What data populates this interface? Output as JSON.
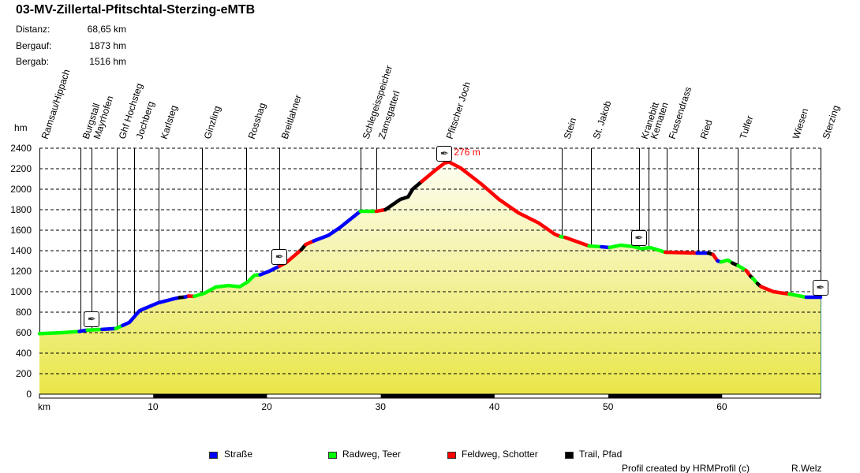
{
  "title": "03-MV-Zillertal-Pfitschtal-Sterzing-eMTB",
  "stats": [
    {
      "label": "Distanz:",
      "value": "68,65 km"
    },
    {
      "label": "Bergauf:",
      "value": "1873 hm"
    },
    {
      "label": "Bergab:",
      "value": "1516 hm"
    }
  ],
  "footer": {
    "credit": "Profil created by HRMProfil (c)",
    "author": "R.Welz"
  },
  "chart_data": {
    "type": "area",
    "ylabel": "hm",
    "xlabel": "km",
    "xlim": [
      0,
      68.65
    ],
    "ylim": [
      0,
      2400
    ],
    "yticks": [
      "0",
      "200",
      "400",
      "600",
      "800",
      "1000",
      "1200",
      "1400",
      "1600",
      "1800",
      "2000",
      "2200",
      "2400"
    ],
    "xticks": [
      "10",
      "20",
      "30",
      "40",
      "50",
      "60"
    ],
    "grid": true,
    "peak_label": "276 m",
    "colors": {
      "strasse": "#0000ff",
      "radweg": "#00ff00",
      "feldweg": "#ff0000",
      "trail": "#000000",
      "fill_top": "#fdfdf0",
      "fill_bottom": "#e9e649"
    },
    "legend": [
      {
        "key": "strasse",
        "label": "Straße"
      },
      {
        "key": "radweg",
        "label": "Radweg, Teer"
      },
      {
        "key": "feldweg",
        "label": "Feldweg, Schotter"
      },
      {
        "key": "trail",
        "label": "Trail, Pfad"
      }
    ],
    "waypoints": [
      {
        "name": "Ramsau/Hippach",
        "km": 0
      },
      {
        "name": "Burgstall",
        "km": 3.6
      },
      {
        "name": "Mayrhofen",
        "km": 4.6
      },
      {
        "name": "Ghf Hochsteg",
        "km": 6.8
      },
      {
        "name": "Jochberg",
        "km": 8.3
      },
      {
        "name": "Karlsteg",
        "km": 10.5
      },
      {
        "name": "Ginzling",
        "km": 14.3
      },
      {
        "name": "Rosshag",
        "km": 18.2
      },
      {
        "name": "Breitlahner",
        "km": 21.1
      },
      {
        "name": "Schlegeisspeicher",
        "km": 28.2
      },
      {
        "name": "Zamsgatterl",
        "km": 29.6
      },
      {
        "name": "Pfitscher Joch",
        "km": 35.6
      },
      {
        "name": "Stein",
        "km": 45.9
      },
      {
        "name": "St. Jakob",
        "km": 48.5
      },
      {
        "name": "Kranebitt",
        "km": 52.7
      },
      {
        "name": "Kematen",
        "km": 53.5
      },
      {
        "name": "Fussendrass",
        "km": 55.1
      },
      {
        "name": "Ried",
        "km": 57.9
      },
      {
        "name": "Tulfer",
        "km": 61.4
      },
      {
        "name": "Wiesen",
        "km": 66.0
      },
      {
        "name": "Sterzing",
        "km": 68.65
      }
    ],
    "markers": [
      {
        "km": 4.6,
        "elev": 635
      },
      {
        "km": 21.1,
        "elev": 1250
      },
      {
        "km": 35.6,
        "elev": 2255
      },
      {
        "km": 52.7,
        "elev": 1430
      },
      {
        "km": 68.65,
        "elev": 946
      }
    ],
    "segments": [
      {
        "type": "radweg",
        "points": [
          [
            0,
            590
          ],
          [
            2,
            600
          ],
          [
            3.5,
            612
          ]
        ]
      },
      {
        "type": "strasse",
        "points": [
          [
            3.9,
            620
          ],
          [
            4.2,
            625
          ]
        ]
      },
      {
        "type": "radweg",
        "points": [
          [
            5.5,
            632
          ]
        ]
      },
      {
        "type": "strasse",
        "points": [
          [
            6.7,
            640
          ]
        ]
      },
      {
        "type": "radweg",
        "points": [
          [
            7.3,
            670
          ]
        ]
      },
      {
        "type": "strasse",
        "points": [
          [
            7.9,
            700
          ],
          [
            8.8,
            815
          ],
          [
            10.4,
            890
          ],
          [
            11.8,
            930
          ],
          [
            12.3,
            942
          ]
        ]
      },
      {
        "type": "trail",
        "points": [
          [
            12.8,
            948
          ]
        ]
      },
      {
        "type": "strasse",
        "points": [
          [
            13.1,
            958
          ]
        ]
      },
      {
        "type": "feldweg",
        "points": [
          [
            13.6,
            955
          ]
        ]
      },
      {
        "type": "radweg",
        "points": [
          [
            14.5,
            985
          ],
          [
            15.5,
            1045
          ],
          [
            16.6,
            1060
          ],
          [
            17.6,
            1048
          ],
          [
            18.3,
            1095
          ],
          [
            18.9,
            1160
          ],
          [
            19.4,
            1165
          ]
        ]
      },
      {
        "type": "strasse",
        "points": [
          [
            20.2,
            1200
          ],
          [
            21.1,
            1250
          ]
        ]
      },
      {
        "type": "feldweg",
        "points": [
          [
            21.7,
            1285
          ],
          [
            23.0,
            1408
          ]
        ]
      },
      {
        "type": "trail",
        "points": [
          [
            23.4,
            1460
          ]
        ]
      },
      {
        "type": "feldweg",
        "points": [
          [
            24.1,
            1495
          ]
        ]
      },
      {
        "type": "strasse",
        "points": [
          [
            25.4,
            1550
          ],
          [
            26.4,
            1625
          ],
          [
            28.2,
            1785
          ]
        ]
      },
      {
        "type": "radweg",
        "points": [
          [
            29.6,
            1785
          ]
        ]
      },
      {
        "type": "feldweg",
        "points": [
          [
            30.4,
            1800
          ]
        ]
      },
      {
        "type": "trail",
        "points": [
          [
            31.7,
            1900
          ],
          [
            32.4,
            1925
          ],
          [
            32.8,
            2000
          ],
          [
            33.6,
            2075
          ]
        ]
      },
      {
        "type": "feldweg",
        "points": [
          [
            34.7,
            2177
          ],
          [
            35.6,
            2255
          ],
          [
            36.0,
            2265
          ],
          [
            37.0,
            2208
          ],
          [
            38.8,
            2054
          ],
          [
            40.4,
            1900
          ],
          [
            42.1,
            1769
          ],
          [
            43.9,
            1669
          ],
          [
            45.3,
            1560
          ],
          [
            45.8,
            1538
          ]
        ]
      },
      {
        "type": "radweg",
        "points": [
          [
            46.2,
            1530
          ]
        ]
      },
      {
        "type": "feldweg",
        "points": [
          [
            48.3,
            1446
          ]
        ]
      },
      {
        "type": "radweg",
        "points": [
          [
            49.4,
            1438
          ]
        ]
      },
      {
        "type": "strasse",
        "points": [
          [
            50.1,
            1431
          ]
        ]
      },
      {
        "type": "radweg",
        "points": [
          [
            51.1,
            1454
          ],
          [
            52.2,
            1440
          ],
          [
            52.9,
            1420
          ],
          [
            53.7,
            1430
          ],
          [
            55.0,
            1385
          ]
        ]
      },
      {
        "type": "feldweg",
        "points": [
          [
            57.8,
            1377
          ]
        ]
      },
      {
        "type": "strasse",
        "points": [
          [
            58.8,
            1377
          ]
        ]
      },
      {
        "type": "trail",
        "points": [
          [
            59.2,
            1362
          ]
        ]
      },
      {
        "type": "feldweg",
        "points": [
          [
            59.6,
            1300
          ]
        ]
      },
      {
        "type": "strasse",
        "points": [
          [
            59.9,
            1290
          ]
        ]
      },
      {
        "type": "radweg",
        "points": [
          [
            60.5,
            1308
          ],
          [
            60.9,
            1280
          ]
        ]
      },
      {
        "type": "trail",
        "points": [
          [
            61.4,
            1254
          ]
        ]
      },
      {
        "type": "radweg",
        "points": [
          [
            62.1,
            1208
          ]
        ]
      },
      {
        "type": "feldweg",
        "points": [
          [
            62.5,
            1150
          ]
        ]
      },
      {
        "type": "trail",
        "points": [
          [
            62.7,
            1130
          ]
        ]
      },
      {
        "type": "radweg",
        "points": [
          [
            63.1,
            1080
          ]
        ]
      },
      {
        "type": "trail",
        "points": [
          [
            63.4,
            1050
          ]
        ]
      },
      {
        "type": "feldweg",
        "points": [
          [
            64.5,
            1000
          ],
          [
            65.9,
            977
          ]
        ]
      },
      {
        "type": "radweg",
        "points": [
          [
            67.4,
            946
          ]
        ]
      },
      {
        "type": "strasse",
        "points": [
          [
            68.65,
            946
          ]
        ]
      }
    ]
  }
}
